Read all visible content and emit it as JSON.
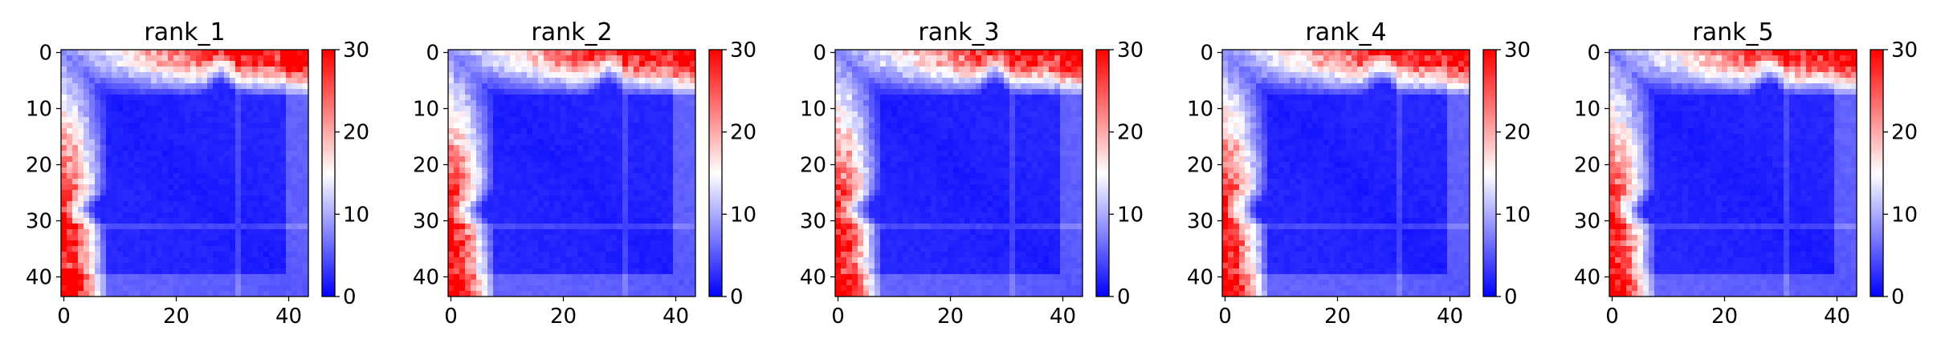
{
  "chart_data": [
    {
      "type": "heatmap",
      "title": "rank_1",
      "n": 44,
      "xticks": [
        0,
        20,
        40
      ],
      "yticks": [
        0,
        10,
        20,
        30,
        40
      ],
      "colorbar": {
        "min": 0,
        "max": 30,
        "ticks": [
          0,
          10,
          20,
          30
        ],
        "colormap": [
          "#0000ff",
          "#ffffff",
          "#ff0000"
        ]
      }
    },
    {
      "type": "heatmap",
      "title": "rank_2",
      "n": 44,
      "xticks": [
        0,
        20,
        40
      ],
      "yticks": [
        0,
        10,
        20,
        30,
        40
      ],
      "colorbar": {
        "min": 0,
        "max": 30,
        "ticks": [
          0,
          10,
          20,
          30
        ],
        "colormap": [
          "#0000ff",
          "#ffffff",
          "#ff0000"
        ]
      }
    },
    {
      "type": "heatmap",
      "title": "rank_3",
      "n": 44,
      "xticks": [
        0,
        20,
        40
      ],
      "yticks": [
        0,
        10,
        20,
        30,
        40
      ],
      "colorbar": {
        "min": 0,
        "max": 30,
        "ticks": [
          0,
          10,
          20,
          30
        ],
        "colormap": [
          "#0000ff",
          "#ffffff",
          "#ff0000"
        ]
      }
    },
    {
      "type": "heatmap",
      "title": "rank_4",
      "n": 44,
      "xticks": [
        0,
        20,
        40
      ],
      "yticks": [
        0,
        10,
        20,
        30,
        40
      ],
      "colorbar": {
        "min": 0,
        "max": 30,
        "ticks": [
          0,
          10,
          20,
          30
        ],
        "colormap": [
          "#0000ff",
          "#ffffff",
          "#ff0000"
        ]
      }
    },
    {
      "type": "heatmap",
      "title": "rank_5",
      "n": 44,
      "xticks": [
        0,
        20,
        40
      ],
      "yticks": [
        0,
        10,
        20,
        30,
        40
      ],
      "colorbar": {
        "min": 0,
        "max": 30,
        "ticks": [
          0,
          10,
          20,
          30
        ],
        "colormap": [
          "#0000ff",
          "#ffffff",
          "#ff0000"
        ]
      }
    }
  ]
}
